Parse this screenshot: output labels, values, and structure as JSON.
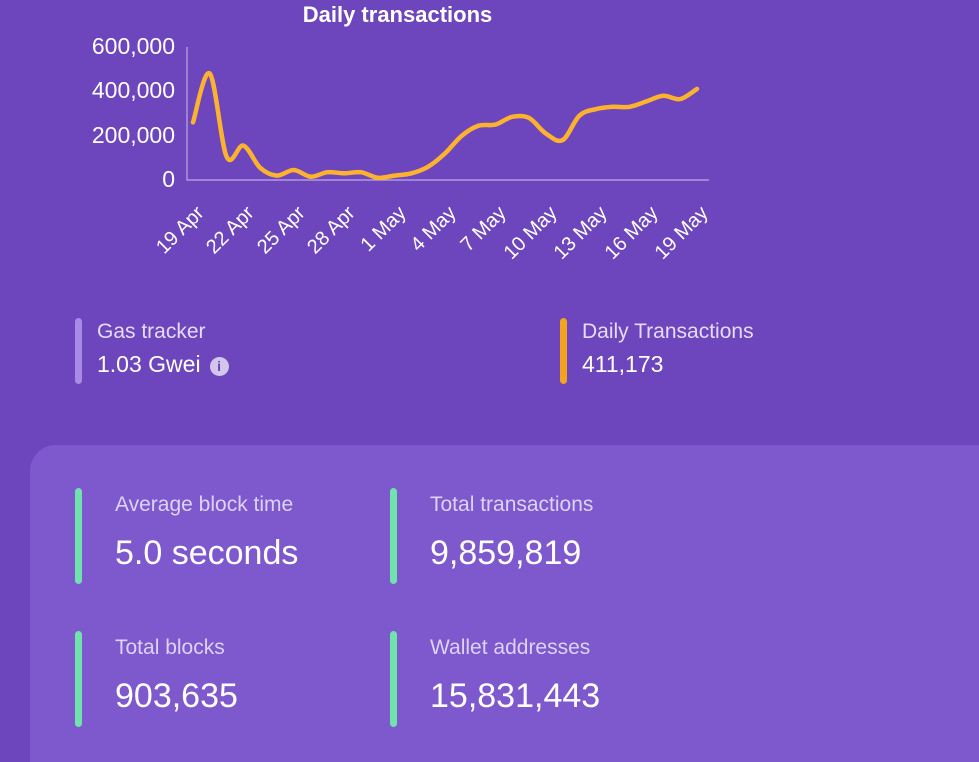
{
  "accents": {
    "chart_line": "#fbb32f",
    "gas_tracker": "#a88ae8",
    "daily_transactions": "#f2a31f",
    "stats": "#70e3ad"
  },
  "chart_data": {
    "type": "line",
    "title": "Daily transactions",
    "x": [
      "19 Apr",
      "20 Apr",
      "21 Apr",
      "22 Apr",
      "23 Apr",
      "24 Apr",
      "25 Apr",
      "26 Apr",
      "27 Apr",
      "28 Apr",
      "29 Apr",
      "30 Apr",
      "1 May",
      "2 May",
      "3 May",
      "4 May",
      "5 May",
      "6 May",
      "7 May",
      "8 May",
      "9 May",
      "10 May",
      "11 May",
      "12 May",
      "13 May",
      "14 May",
      "15 May",
      "16 May",
      "17 May",
      "18 May",
      "19 May"
    ],
    "values": [
      260000,
      480000,
      105000,
      155000,
      55000,
      20000,
      45000,
      15000,
      35000,
      30000,
      35000,
      10000,
      20000,
      30000,
      60000,
      120000,
      200000,
      245000,
      250000,
      285000,
      280000,
      210000,
      180000,
      290000,
      320000,
      330000,
      330000,
      355000,
      380000,
      365000,
      411173
    ],
    "x_tick_labels": [
      "19 Apr",
      "22 Apr",
      "25 Apr",
      "28 Apr",
      "1 May",
      "4 May",
      "7 May",
      "10 May",
      "13 May",
      "16 May",
      "19 May"
    ],
    "y_ticks": [
      0,
      200000,
      400000,
      600000
    ],
    "y_tick_labels": [
      "0",
      "200,000",
      "400,000",
      "600,000"
    ],
    "ylim": [
      0,
      600000
    ],
    "xlabel": "",
    "ylabel": "",
    "grid": false,
    "legend": "none",
    "line_color": "#fbb32f"
  },
  "gas_tracker": {
    "label": "Gas tracker",
    "value": "1.03 Gwei",
    "info_icon": "i"
  },
  "daily_transactions": {
    "label": "Daily Transactions",
    "value": "411,173"
  },
  "stats": {
    "items": [
      {
        "label": "Average block time",
        "value": "5.0 seconds"
      },
      {
        "label": "Total transactions",
        "value": "9,859,819"
      },
      {
        "label": "Total blocks",
        "value": "903,635"
      },
      {
        "label": "Wallet addresses",
        "value": "15,831,443"
      }
    ]
  }
}
